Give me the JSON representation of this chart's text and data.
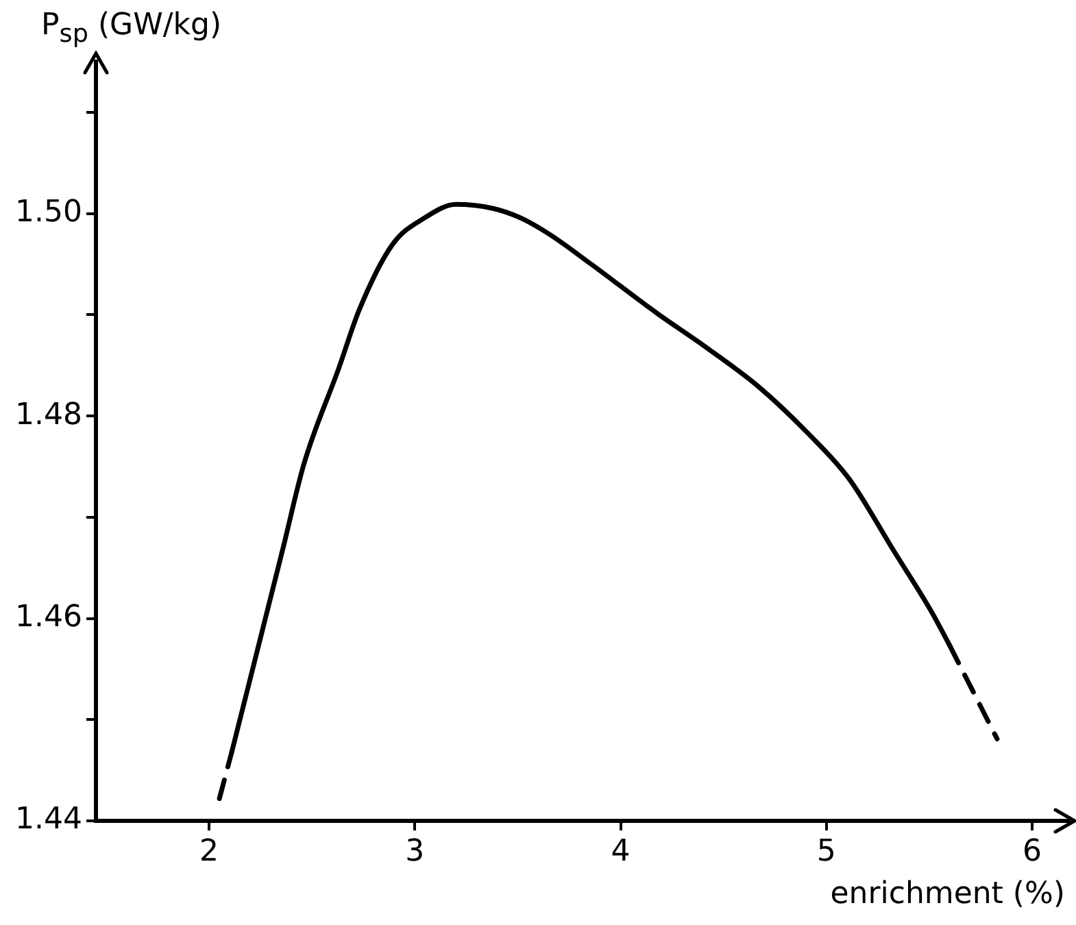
{
  "chart_data": {
    "type": "line",
    "xlabel": "enrichment (%)",
    "ylabel": "P$_{sp}$ (GW/kg)",
    "xlim": [
      1.45,
      6.18
    ],
    "xticks": [
      2,
      3,
      4,
      5,
      6
    ],
    "ylim": [
      1.44,
      1.515
    ],
    "yticks": [
      {
        "value": 1.44,
        "label": "1.44"
      },
      {
        "value": 1.45,
        "label": null
      },
      {
        "value": 1.46,
        "label": "1.46"
      },
      {
        "value": 1.47,
        "label": null
      },
      {
        "value": 1.48,
        "label": "1.48"
      },
      {
        "value": 1.49,
        "label": null
      },
      {
        "value": 1.5,
        "label": "1.50"
      },
      {
        "value": 1.51,
        "label": null
      }
    ],
    "grid": false,
    "legend": false,
    "marker": "none",
    "series": [
      {
        "color": "#000000",
        "line_style": "dashed",
        "x": [
          2.05,
          2.11
        ],
        "values": [
          1.4422,
          1.4468
        ]
      },
      {
        "color": "#000000",
        "line_style": "solid",
        "x": [
          2.11,
          2.36,
          2.46,
          2.63,
          2.73,
          2.89,
          3.05,
          3.2,
          3.38,
          3.51,
          3.65,
          3.85,
          4.18,
          4.4,
          4.67,
          4.91,
          5.11,
          5.33,
          5.51,
          5.6
        ],
        "values": [
          1.4468,
          1.467,
          1.4752,
          1.4847,
          1.4905,
          1.4969,
          1.4996,
          1.5009,
          1.5005,
          1.4996,
          1.498,
          1.4951,
          1.4901,
          1.487,
          1.4829,
          1.4783,
          1.4738,
          1.4666,
          1.4607,
          1.4573
        ]
      },
      {
        "color": "#000000",
        "line_style": "dashed",
        "x": [
          5.6,
          5.83
        ],
        "values": [
          1.4573,
          1.4481
        ]
      }
    ]
  }
}
